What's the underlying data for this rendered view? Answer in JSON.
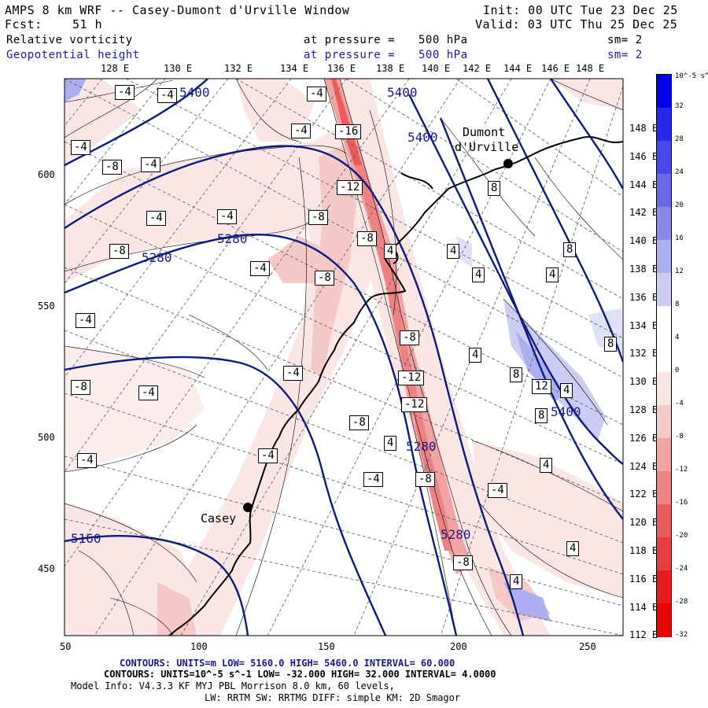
{
  "header": {
    "title": "AMPS 8 km WRF -- Casey-Dumont d'Urville Window",
    "fcst_label": "Fcst:",
    "fcst_value": "51 h",
    "init": "Init: 00 UTC Tue 23 Dec 25",
    "valid": "Valid: 03 UTC Thu 25 Dec 25",
    "field1": {
      "name": "Relative vorticity",
      "level_label": "at pressure =",
      "level": "500 hPa",
      "sm": "sm= 2"
    },
    "field2": {
      "name": "Geopotential height",
      "level_label": "at pressure =",
      "level": "500 hPa",
      "sm": "sm= 2"
    }
  },
  "map": {
    "top_lon_labels": [
      "128 E",
      "130 E",
      "132 E",
      "134 E",
      "136 E",
      "138 E",
      "140 E",
      "142 E",
      "144 E",
      "146 E",
      "148 E"
    ],
    "right_lon_labels": [
      "148 E",
      "146 E",
      "144 E",
      "142 E",
      "140 E",
      "138 E",
      "136 E",
      "134 E",
      "132 E",
      "130 E",
      "128 E",
      "126 E",
      "124 E",
      "122 E",
      "120 E",
      "118 E",
      "116 E",
      "114 E",
      "112 E"
    ],
    "x_ticks": [
      "50",
      "100",
      "150",
      "200",
      "250"
    ],
    "y_ticks": [
      "600",
      "550",
      "500",
      "450"
    ],
    "stations": [
      {
        "name": "Casey"
      },
      {
        "name": "Dumont",
        "name2": "d'Urville"
      }
    ],
    "height_contour_labels": [
      "5400",
      "5400",
      "5400",
      "5280",
      "5280",
      "5280",
      "5280",
      "5400",
      "5160"
    ],
    "vorticity_labels": [
      "-4",
      "-4",
      "-4",
      "-4",
      "-16",
      "-4",
      "-8",
      "-4",
      "-12",
      "-8",
      "-8",
      "-4",
      "-4",
      "-8",
      "-4",
      "-8",
      "-8",
      "-4",
      "-12",
      "-8",
      "-4",
      "-12",
      "-4",
      "-4",
      "-4",
      "-8",
      "-8",
      "-4",
      "4",
      "4",
      "4",
      "8",
      "8",
      "8",
      "4",
      "4",
      "4",
      "8",
      "12",
      "8",
      "4",
      "4",
      "4",
      "4",
      "-4",
      "-8"
    ],
    "colors": {
      "height_contour": "#0d1a80",
      "coast": "#000000",
      "grid": "#444444"
    }
  },
  "colorbar": {
    "unit_label": "10^-5 s^-1",
    "ticks": [
      "32",
      "28",
      "24",
      "20",
      "16",
      "12",
      "8",
      "4",
      "0",
      "-4",
      "-8",
      "-12",
      "-16",
      "-20",
      "-24",
      "-28",
      "-32"
    ],
    "colors": [
      "#0000ee",
      "#2828ee",
      "#4848e6",
      "#6a6ae6",
      "#8a8aea",
      "#adaef0",
      "#ccccf4",
      "#ffffff",
      "#ffffff",
      "#fbe6e6",
      "#f6c9c9",
      "#f2a4a4",
      "#ee8282",
      "#ea5c5c",
      "#e83e3e",
      "#e81c1c",
      "#ee0000"
    ]
  },
  "footer": {
    "line1": "CONTOURS: UNITS=m LOW= 5160.0 HIGH= 5460.0 INTERVAL= 60.000",
    "line2": "CONTOURS: UNITS=10^-5 s^-1 LOW= -32.000 HIGH= 32.000 INTERVAL= 4.0000",
    "line3": "Model Info: V4.3.3 KF MYJ PBL Morrison 8.0 km, 60 levels,",
    "line4": "LW: RRTM SW: RRTMG DIFF: simple KM: 2D Smagor"
  }
}
